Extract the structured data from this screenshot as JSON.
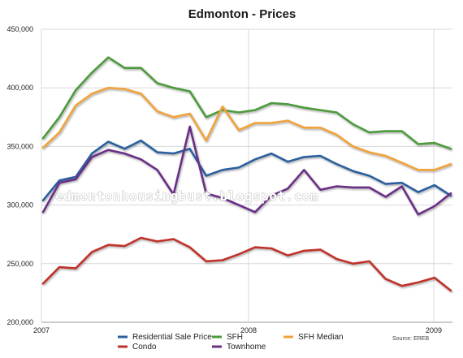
{
  "chart_data": {
    "type": "line",
    "title": "Edmonton - Prices",
    "watermark": "edmontonhousingbust.blogspot.com",
    "source": "Source: EREB",
    "x_tick_labels": [
      "2007",
      "2008",
      "2009"
    ],
    "y_tick_labels": [
      "200,000",
      "250,000",
      "300,000",
      "350,000",
      "400,000",
      "450,000"
    ],
    "ylim": [
      200000,
      450000
    ],
    "y_ticks": [
      200000,
      250000,
      300000,
      350000,
      400000,
      450000
    ],
    "grid": true,
    "legend_position": "bottom",
    "series": [
      {
        "name": "Residential Sale Price",
        "color": "#2c5e9e",
        "values": [
          304000,
          321000,
          324000,
          344000,
          354000,
          348000,
          355000,
          345000,
          344000,
          348000,
          325000,
          330000,
          332000,
          339000,
          344000,
          337000,
          341000,
          342000,
          335000,
          329000,
          325000,
          318000,
          319000,
          311000,
          317000,
          308000
        ]
      },
      {
        "name": "SFH",
        "color": "#4e9a3c",
        "values": [
          357000,
          375000,
          398000,
          413000,
          426000,
          417000,
          417000,
          404000,
          400000,
          397000,
          375000,
          381000,
          379000,
          381000,
          387000,
          386000,
          383000,
          381000,
          379000,
          369000,
          362000,
          363000,
          363000,
          352000,
          353000,
          348000
        ]
      },
      {
        "name": "SFH Median",
        "color": "#f0a23a",
        "values": [
          349000,
          362000,
          385000,
          395000,
          400000,
          399000,
          395000,
          380000,
          375000,
          378000,
          355000,
          384000,
          364000,
          370000,
          370000,
          372000,
          366000,
          366000,
          360000,
          350000,
          345000,
          342000,
          336000,
          330000,
          330000,
          335000
        ]
      },
      {
        "name": "Condo",
        "color": "#c0302a",
        "values": [
          233000,
          247000,
          246000,
          260000,
          266000,
          265000,
          272000,
          269000,
          271000,
          264000,
          252000,
          253000,
          258000,
          264000,
          263000,
          257000,
          261000,
          262000,
          254000,
          250000,
          252000,
          237000,
          231000,
          234000,
          238000,
          227000
        ]
      },
      {
        "name": "Townhome",
        "color": "#6a2f86",
        "values": [
          294000,
          319000,
          322000,
          341000,
          347000,
          344000,
          339000,
          330000,
          309000,
          367000,
          310000,
          306000,
          300000,
          294000,
          308000,
          314000,
          330000,
          313000,
          316000,
          315000,
          315000,
          307000,
          316000,
          292000,
          299000,
          310000
        ]
      }
    ]
  }
}
